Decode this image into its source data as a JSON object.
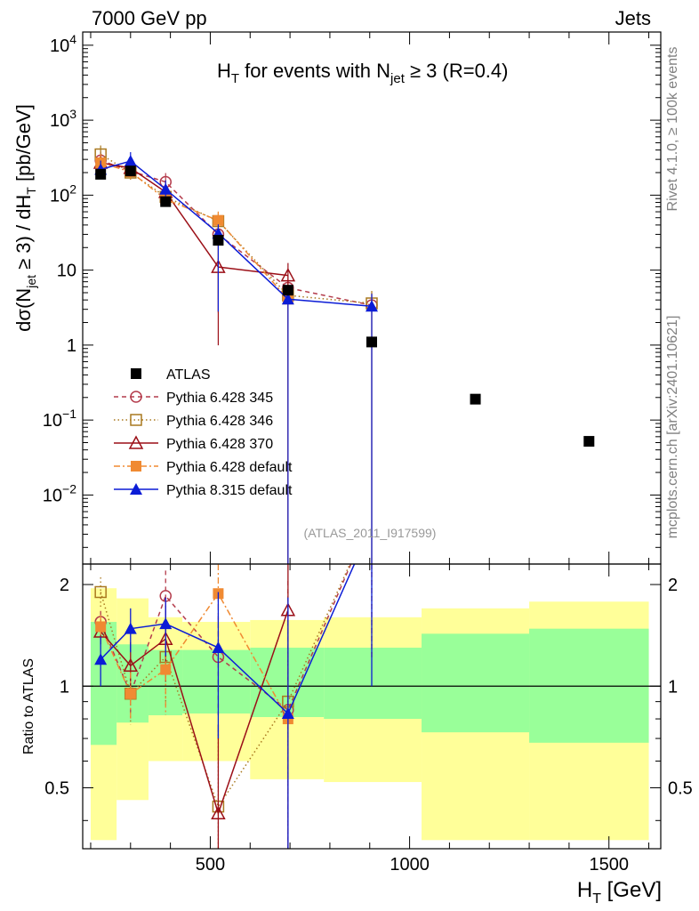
{
  "header": {
    "energy_label": "7000 GeV pp",
    "category_label": "Jets",
    "plot_title": "H_T for events with N_jet ≥ 3 (R=0.4)",
    "plot_title_main": "H",
    "plot_title_sub1": "T",
    "plot_title_mid": " for events with N",
    "plot_title_sub2": "jet",
    "plot_title_end": " ≥ 3 (R=0.4)",
    "analysis_label": "(ATLAS_2011_I917599)"
  },
  "side_labels": {
    "rivet": "Rivet 4.1.0, ≥ 100k events",
    "mcplots": "mcplots.cern.ch [arXiv:2401.10621]"
  },
  "axes": {
    "main_ylabel": "dσ(N_jet ≥ 3) / dH_T [pb/GeV]",
    "ylabel_parts": {
      "a": "dσ(N",
      "b": "jet",
      "c": " ≥ 3) / dH",
      "d": "T",
      "e": " [pb/GeV]"
    },
    "ratio_ylabel": "Ratio to ATLAS",
    "xlabel": "H_T [GeV]",
    "xlabel_parts": {
      "a": "H",
      "b": "T",
      "c": " [GeV]"
    },
    "main_yticks": [
      {
        "value": 10000,
        "base": "10",
        "exp": "4"
      },
      {
        "value": 1000,
        "base": "10",
        "exp": "3"
      },
      {
        "value": 100,
        "base": "10",
        "exp": "2"
      },
      {
        "value": 10,
        "base": "10",
        "exp": ""
      },
      {
        "value": 1,
        "base": "1",
        "exp": ""
      },
      {
        "value": 0.1,
        "base": "10",
        "exp": "−1"
      },
      {
        "value": 0.01,
        "base": "10",
        "exp": "−2"
      }
    ],
    "ratio_yticks": [
      {
        "value": 2,
        "label": "2"
      },
      {
        "value": 1,
        "label": "1"
      },
      {
        "value": 0.5,
        "label": "0.5"
      }
    ],
    "xticks": [
      {
        "value": 500,
        "label": "500"
      },
      {
        "value": 1000,
        "label": "1000"
      },
      {
        "value": 1500,
        "label": "1500"
      }
    ]
  },
  "chart_data": {
    "type": "scatter",
    "title": "H_T for events with N_jet ≥ 3 (R=0.4)",
    "xlabel": "H_T [GeV]",
    "ylabel": "dσ(N_jet ≥ 3) / dH_T [pb/GeV]",
    "xlim": [
      180,
      1630
    ],
    "ylim": [
      0.0012,
      15000
    ],
    "yscale": "log",
    "ratio_ylim": [
      0.33,
      2.3
    ],
    "ratio_yscale": "log",
    "legend_position": "center-left",
    "reference": {
      "name": "ATLAS",
      "x": [
        225,
        300,
        388,
        520,
        695,
        905,
        1165,
        1450
      ],
      "y": [
        190,
        210,
        82,
        25,
        5.4,
        1.1,
        0.19,
        0.052
      ],
      "color": "#000000",
      "marker": "square-filled"
    },
    "bands": {
      "edges": [
        200,
        265,
        345,
        430,
        600,
        785,
        1030,
        1300,
        1600
      ],
      "yellow_lo": [
        0.35,
        0.46,
        0.6,
        0.6,
        0.53,
        0.52,
        0.35,
        0.35
      ],
      "yellow_hi": [
        1.95,
        1.82,
        1.6,
        1.55,
        1.57,
        1.6,
        1.7,
        1.78
      ],
      "green_lo": [
        0.67,
        0.78,
        0.82,
        0.83,
        0.81,
        0.8,
        0.73,
        0.68
      ],
      "green_hi": [
        1.55,
        1.33,
        1.28,
        1.28,
        1.3,
        1.3,
        1.43,
        1.48
      ],
      "yellow_color": "#ffff99",
      "green_color": "#99ff99"
    },
    "series": [
      {
        "name": "Pythia 6.428 345",
        "color": "#b43b4b",
        "marker": "circle-open",
        "line": "dashed",
        "x": [
          225,
          300,
          388,
          520,
          695,
          905
        ],
        "y": [
          290,
          210,
          150,
          30,
          5.8,
          3.4
        ],
        "ratio": [
          1.55,
          0.95,
          1.85,
          1.22,
          0.85,
          3.2
        ],
        "ratio_err": [
          0.12,
          0.12,
          0.35,
          0.4,
          1.2,
          2.0
        ]
      },
      {
        "name": "Pythia 6.428 346",
        "color": "#a9781f",
        "marker": "square-open",
        "line": "dotted",
        "x": [
          225,
          300,
          388,
          520,
          695,
          905
        ],
        "y": [
          350,
          200,
          95,
          45,
          4.6,
          3.6
        ],
        "ratio": [
          1.9,
          0.95,
          1.22,
          0.44,
          0.9,
          3.2
        ],
        "ratio_err": [
          0.2,
          0.18,
          0.35,
          0.3,
          1.0,
          2.0
        ]
      },
      {
        "name": "Pythia 6.428 370",
        "color": "#9b0f17",
        "marker": "triangle-open",
        "line": "solid",
        "x": [
          225,
          300,
          388,
          520,
          695
        ],
        "y": [
          270,
          230,
          110,
          11,
          8.5
        ],
        "ratio": [
          1.45,
          1.15,
          1.38,
          0.42,
          1.68
        ],
        "ratio_err": [
          0.12,
          0.2,
          0.35,
          0.35,
          1.5
        ]
      },
      {
        "name": "Pythia 6.428 default",
        "color": "#f08a32",
        "marker": "square-filled",
        "line": "dashdot",
        "x": [
          225,
          300,
          388,
          520,
          695
        ],
        "y": [
          270,
          205,
          88,
          46,
          4.1
        ],
        "ratio": [
          1.5,
          0.95,
          1.12,
          1.88,
          0.8
        ],
        "ratio_err": [
          0.12,
          0.15,
          0.3,
          0.6,
          1.0
        ]
      },
      {
        "name": "Pythia 8.315 default",
        "color": "#0b1cd6",
        "marker": "triangle-filled",
        "line": "solid",
        "x": [
          225,
          300,
          388,
          520,
          695,
          905
        ],
        "y": [
          220,
          285,
          120,
          31,
          4.1,
          3.3
        ],
        "ratio": [
          1.2,
          1.48,
          1.53,
          1.3,
          0.83,
          3.0
        ],
        "ratio_err": [
          0.2,
          0.22,
          0.3,
          0.6,
          1.0,
          2.0
        ]
      }
    ]
  }
}
